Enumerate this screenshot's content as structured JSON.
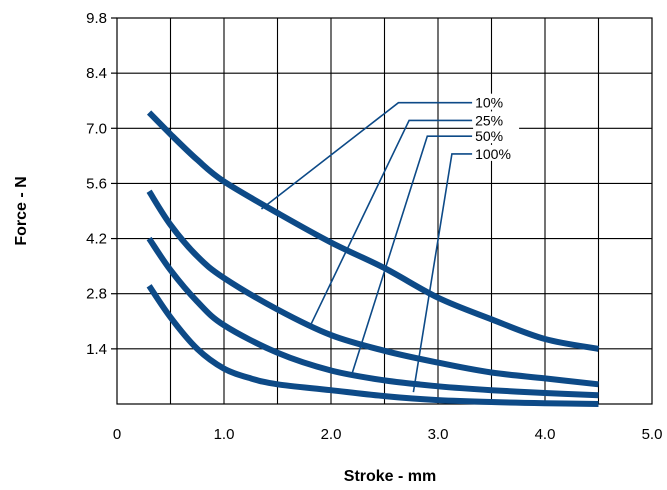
{
  "chart_data": {
    "type": "line",
    "title": "",
    "xlabel": "Stroke - mm",
    "ylabel": "Force - N",
    "xlim": [
      0,
      5.0
    ],
    "ylim": [
      0,
      9.8
    ],
    "x_ticks": [
      0,
      1.0,
      2.0,
      3.0,
      4.0,
      5.0
    ],
    "x_tick_labels": [
      "0",
      "1.0",
      "2.0",
      "3.0",
      "4.0",
      "5.0"
    ],
    "y_ticks": [
      1.4,
      2.8,
      4.2,
      5.6,
      7.0,
      8.4,
      9.8
    ],
    "y_tick_labels": [
      "1.4",
      "2.8",
      "4.2",
      "5.6",
      "7.0",
      "8.4",
      "9.8"
    ],
    "grid": true,
    "legend": "callout-labels",
    "line_color": "#0d4a87",
    "series": [
      {
        "name": "10%",
        "x": [
          0.3,
          0.5,
          0.75,
          1.0,
          1.5,
          2.0,
          2.5,
          3.0,
          3.5,
          4.0,
          4.5
        ],
        "y": [
          7.4,
          6.85,
          6.2,
          5.65,
          4.85,
          4.1,
          3.45,
          2.7,
          2.15,
          1.65,
          1.4
        ]
      },
      {
        "name": "25%",
        "x": [
          0.3,
          0.5,
          0.75,
          1.0,
          1.5,
          2.0,
          2.5,
          3.0,
          3.5,
          4.0,
          4.5
        ],
        "y": [
          5.4,
          4.55,
          3.75,
          3.2,
          2.4,
          1.75,
          1.35,
          1.05,
          0.8,
          0.65,
          0.5
        ]
      },
      {
        "name": "50%",
        "x": [
          0.3,
          0.5,
          0.75,
          1.0,
          1.5,
          2.0,
          2.5,
          3.0,
          3.5,
          4.0,
          4.5
        ],
        "y": [
          4.2,
          3.4,
          2.6,
          2.0,
          1.3,
          0.85,
          0.6,
          0.45,
          0.35,
          0.28,
          0.22
        ]
      },
      {
        "name": "100%",
        "x": [
          0.3,
          0.5,
          0.75,
          1.0,
          1.25,
          1.5,
          2.0,
          2.5,
          3.0,
          3.5,
          4.0,
          4.5
        ],
        "y": [
          3.0,
          2.2,
          1.4,
          0.9,
          0.65,
          0.5,
          0.35,
          0.2,
          0.1,
          0.05,
          0.02,
          0.0
        ]
      }
    ],
    "callouts": [
      {
        "label": "10%",
        "label_x": 3.3,
        "label_y": 7.65,
        "elbow_x": 2.63,
        "elbow_y": 7.65,
        "target_x": 1.35,
        "target_y": 4.95
      },
      {
        "label": "25%",
        "label_x": 3.3,
        "label_y": 7.2,
        "elbow_x": 2.73,
        "elbow_y": 7.2,
        "target_x": 1.8,
        "target_y": 1.95
      },
      {
        "label": "50%",
        "label_x": 3.3,
        "label_y": 6.8,
        "elbow_x": 2.9,
        "elbow_y": 6.8,
        "target_x": 2.2,
        "target_y": 0.8
      },
      {
        "label": "100%",
        "label_x": 3.3,
        "label_y": 6.35,
        "elbow_x": 3.13,
        "elbow_y": 6.35,
        "target_x": 2.77,
        "target_y": 0.3
      }
    ]
  }
}
